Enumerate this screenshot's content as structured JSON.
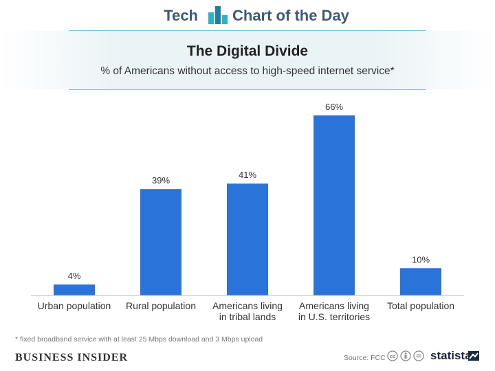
{
  "header": {
    "left_label": "Tech",
    "right_label": "Chart of the Day"
  },
  "chart_data": {
    "type": "bar",
    "title": "The Digital Divide",
    "subtitle": "% of Americans without access to high-speed internet service*",
    "categories": [
      [
        "Urban population"
      ],
      [
        "Rural population"
      ],
      [
        "Americans living",
        "in tribal lands"
      ],
      [
        "Americans living",
        "in U.S. territories"
      ],
      [
        "Total population"
      ]
    ],
    "values": [
      4,
      39,
      41,
      66,
      10
    ],
    "value_labels": [
      "4%",
      "39%",
      "41%",
      "66%",
      "10%"
    ],
    "ylim": [
      0,
      70
    ],
    "grid": false,
    "bar_color": "#2a73d9",
    "xlabel": "",
    "ylabel": ""
  },
  "footnote": "* fixed broadband service with at least 25 Mbps download and 3 Mbps upload",
  "footer": {
    "publisher": "Business Insider",
    "source": "Source: FCC",
    "brand": "statista"
  },
  "icons": [
    "chart-bars-icon",
    "creative-commons-icon",
    "attribution-icon",
    "no-derivatives-icon",
    "statista-logo-icon"
  ]
}
